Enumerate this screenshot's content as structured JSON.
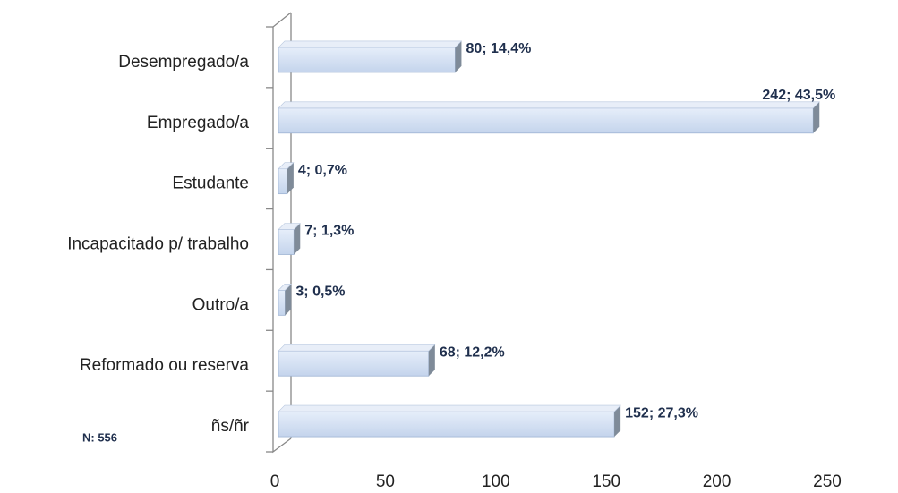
{
  "chart_data": {
    "type": "bar",
    "orientation": "horizontal",
    "categories": [
      "Desempregado/a",
      "Empregado/a",
      "Estudante",
      "Incapacitado p/ trabalho",
      "Outro/a",
      "Reformado ou reserva",
      "ñs/ñr"
    ],
    "values": [
      80,
      242,
      4,
      7,
      3,
      68,
      152
    ],
    "value_labels": [
      "80; 14,4%",
      "242; 43,5%",
      "4; 0,7%",
      "7; 1,3%",
      "3; 0,5%",
      "68; 12,2%",
      "152; 27,3%"
    ],
    "color": "#cddcf1",
    "xlim": [
      0,
      250
    ],
    "xticks": [
      0,
      50,
      100,
      150,
      200,
      250
    ],
    "annotation": "N: 556"
  }
}
